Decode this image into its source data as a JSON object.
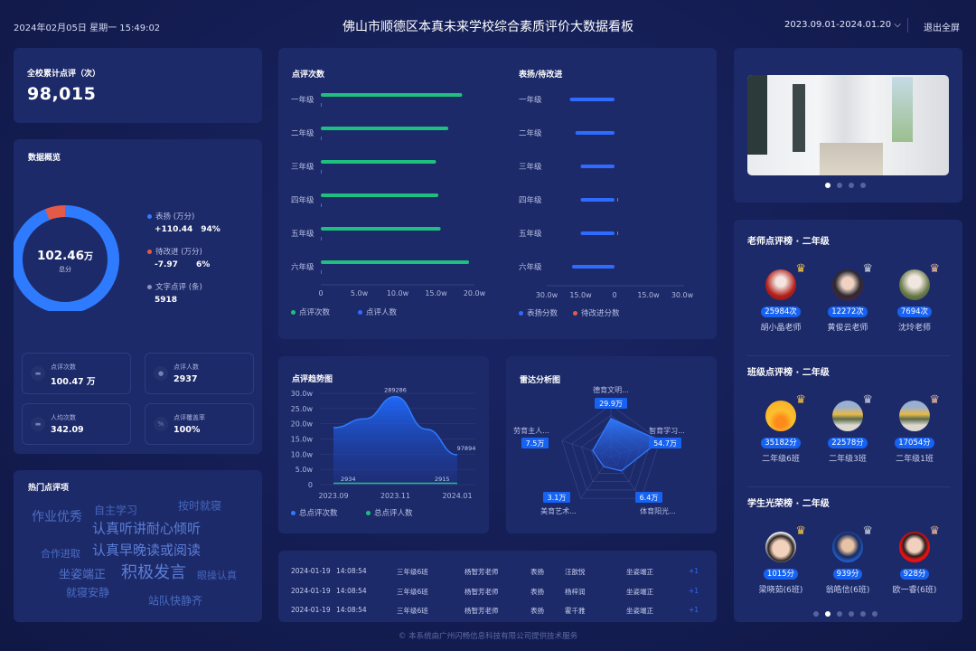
{
  "header": {
    "datetime": "2024年02月05日 星期一 15:49:02",
    "title": "佛山市顺德区本真未来学校综合素质评价大数据看板",
    "date_range": "2023.09.01-2024.01.20",
    "exit_label": "退出全屏"
  },
  "total": {
    "title": "全校累计点评（次）",
    "value": "98,015"
  },
  "overview": {
    "title": "数据概览",
    "center_value": "102.46",
    "center_unit": "万",
    "center_label": "总分",
    "legend": [
      {
        "label": "表扬 (万分)",
        "value": "+110.44",
        "pct": "94%",
        "color": "#2f7bff",
        "share": 94
      },
      {
        "label": "待改进 (万分)",
        "value": "-7.97",
        "pct": "6%",
        "color": "#e45a48",
        "share": 6
      },
      {
        "label": "文字点评 (条)",
        "value": "5918",
        "pct": "",
        "color": "#8b93b8"
      }
    ],
    "stats": [
      {
        "label": "点评次数",
        "value": "100.47 万",
        "icon": "comment-icon"
      },
      {
        "label": "点评人数",
        "value": "2937",
        "icon": "user-icon"
      },
      {
        "label": "人均次数",
        "value": "342.09",
        "icon": "chat-icon"
      },
      {
        "label": "点评覆盖率",
        "value": "100%",
        "icon": "percent-icon"
      }
    ]
  },
  "hot": {
    "title": "热门点评项",
    "words": [
      "作业优秀",
      "自主学习",
      "按时就寝",
      "认真听讲耐心倾听",
      "合作进取",
      "认真早晚读或阅读",
      "坐姿端正",
      "积极发言",
      "眼操认真",
      "就寝安静",
      "站队快静齐"
    ]
  },
  "chart_data": [
    {
      "type": "bar",
      "title": "点评次数",
      "orientation": "horizontal",
      "categories": [
        "一年级",
        "二年级",
        "三年级",
        "四年级",
        "五年级",
        "六年级"
      ],
      "series": [
        {
          "name": "点评次数",
          "color": "#1fbf7f",
          "values": [
            18.4,
            16.6,
            15.0,
            15.3,
            15.6,
            19.3
          ]
        },
        {
          "name": "点评人数",
          "color": "#2f6bff",
          "values": [
            0.05,
            0.05,
            0.05,
            0.05,
            0.05,
            0.05
          ]
        }
      ],
      "unit": "w",
      "xlim": [
        0,
        20
      ],
      "xticks": [
        "0",
        "5.0w",
        "10.0w",
        "15.0w",
        "20.0w"
      ],
      "legend": "bottom-left"
    },
    {
      "type": "bar",
      "title": "表扬/待改进",
      "orientation": "horizontal-diverging",
      "categories": [
        "一年级",
        "二年级",
        "三年级",
        "四年级",
        "五年级",
        "六年级"
      ],
      "series": [
        {
          "name": "表扬分数",
          "color": "#2f6bff",
          "values": [
            19.8,
            17.3,
            15.0,
            15.0,
            15.0,
            18.8
          ]
        },
        {
          "name": "待改进分数",
          "color": "#e45a48",
          "values": [
            0,
            0,
            0,
            0.3,
            0.3,
            0
          ]
        }
      ],
      "unit": "w",
      "xlim": [
        -30,
        30
      ],
      "xticks": [
        "30.0w",
        "15.0w",
        "0",
        "15.0w",
        "30.0w"
      ],
      "legend": "bottom-left"
    },
    {
      "type": "area",
      "title": "点评趋势图",
      "x": [
        "2023.09",
        "2023.10",
        "2023.11",
        "2023.12",
        "2024.01"
      ],
      "xticks": [
        "2023.09",
        "2023.11",
        "2024.01"
      ],
      "yticks": [
        "0",
        "5.0w",
        "10.0w",
        "15.0w",
        "20.0w",
        "25.0w",
        "30.0w"
      ],
      "ylim": [
        0,
        300000
      ],
      "series": [
        {
          "name": "总点评次数",
          "color": "#2f7bff",
          "values": [
            187000,
            216000,
            289286,
            182000,
            97894
          ],
          "labels": [
            "",
            "",
            "289286",
            "",
            "97894"
          ]
        },
        {
          "name": "总点评人数",
          "color": "#1fbf7f",
          "values": [
            2934,
            2930,
            2925,
            2920,
            2915
          ],
          "labels": [
            "2934",
            "",
            "",
            "",
            "2915"
          ]
        }
      ],
      "legend": "bottom-left"
    },
    {
      "type": "radar",
      "title": "雷达分析图",
      "indicators": [
        "德育文明...",
        "智育学习...",
        "体育阳光...",
        "美育艺术...",
        "劳育主人..."
      ],
      "values": [
        29.9,
        54.7,
        6.4,
        3.1,
        7.5
      ],
      "value_labels": [
        "29.9万",
        "54.7万",
        "6.4万",
        "3.1万",
        "7.5万"
      ],
      "color": "#2f7bff"
    }
  ],
  "records": [
    {
      "date": "2024-01-19",
      "time": "14:08:54",
      "class": "三年级6班",
      "teacher": "杨智芳老师",
      "type": "表扬",
      "student": "汪歆悦",
      "item": "坐姿端正",
      "score": "+1"
    },
    {
      "date": "2024-01-19",
      "time": "14:08:54",
      "class": "三年级6班",
      "teacher": "杨智芳老师",
      "type": "表扬",
      "student": "杨梓润",
      "item": "坐姿端正",
      "score": "+1"
    },
    {
      "date": "2024-01-19",
      "time": "14:08:54",
      "class": "三年级6班",
      "teacher": "杨智芳老师",
      "type": "表扬",
      "student": "霍千雅",
      "item": "坐姿端正",
      "score": "+1"
    }
  ],
  "carousel": {
    "slides": 4,
    "active": 0
  },
  "rankings": {
    "sections": [
      {
        "title": "老师点评榜 · 二年级",
        "items": [
          {
            "badge": "25984次",
            "name": "胡小晶老师"
          },
          {
            "badge": "12272次",
            "name": "黄俊云老师"
          },
          {
            "badge": "7694次",
            "name": "沈玲老师"
          }
        ]
      },
      {
        "title": "班级点评榜 · 二年级",
        "items": [
          {
            "badge": "35182分",
            "name": "二年级6班"
          },
          {
            "badge": "22578分",
            "name": "二年级3班"
          },
          {
            "badge": "17054分",
            "name": "二年级1班"
          }
        ]
      },
      {
        "title": "学生光荣榜 · 二年级",
        "items": [
          {
            "badge": "1015分",
            "name": "梁晓茹(6班)"
          },
          {
            "badge": "939分",
            "name": "翁皓信(6班)"
          },
          {
            "badge": "928分",
            "name": "欧一睿(6班)"
          }
        ]
      }
    ],
    "pages": 6,
    "active": 1,
    "crown_colors": [
      "#f5c242",
      "#c9cfdc",
      "#e8b99a"
    ]
  },
  "footer": "© 本系统由广州闪畅信息科技有限公司提供技术服务"
}
